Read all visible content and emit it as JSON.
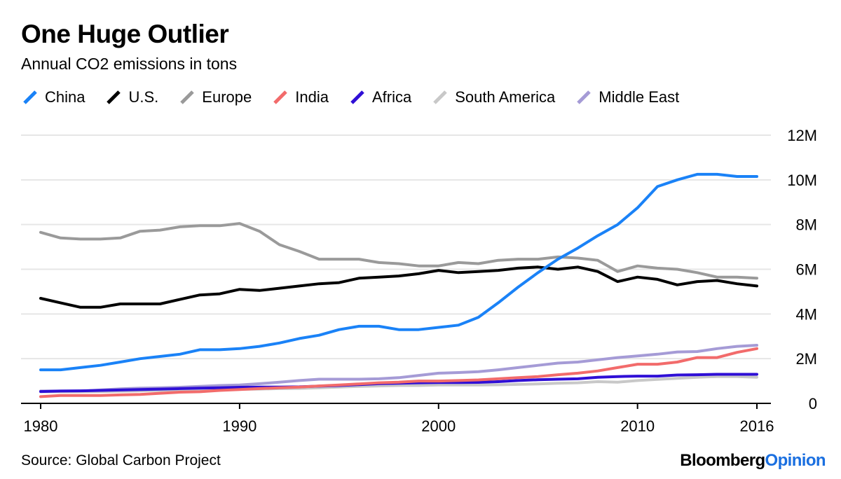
{
  "header": {
    "title": "One Huge Outlier",
    "subtitle": "Annual CO2 emissions in tons"
  },
  "footer": {
    "source": "Source: Global Carbon Project",
    "brand_primary": "Bloomberg",
    "brand_secondary": "Opinion"
  },
  "chart_data": {
    "type": "line",
    "title": "One Huge Outlier",
    "subtitle": "Annual CO2 emissions in tons",
    "xlabel": "",
    "ylabel": "",
    "xlim": [
      1980,
      2016
    ],
    "ylim": [
      0,
      12000000
    ],
    "x_ticks": [
      1980,
      1990,
      2000,
      2010,
      2016
    ],
    "y_ticks": [
      0,
      2000000,
      4000000,
      6000000,
      8000000,
      10000000,
      12000000
    ],
    "y_tick_labels": [
      "0",
      "2M",
      "4M",
      "6M",
      "8M",
      "10M",
      "12M"
    ],
    "y_axis_side": "right",
    "grid": "horizontal",
    "legend_position": "top",
    "x": [
      1980,
      1981,
      1982,
      1983,
      1984,
      1985,
      1986,
      1987,
      1988,
      1989,
      1990,
      1991,
      1992,
      1993,
      1994,
      1995,
      1996,
      1997,
      1998,
      1999,
      2000,
      2001,
      2002,
      2003,
      2004,
      2005,
      2006,
      2007,
      2008,
      2009,
      2010,
      2011,
      2012,
      2013,
      2014,
      2015,
      2016
    ],
    "series": [
      {
        "name": "China",
        "color": "#1a82f7",
        "values": [
          1.5,
          1.5,
          1.6,
          1.7,
          1.85,
          2.0,
          2.1,
          2.2,
          2.4,
          2.4,
          2.45,
          2.55,
          2.7,
          2.9,
          3.05,
          3.3,
          3.45,
          3.45,
          3.3,
          3.3,
          3.4,
          3.5,
          3.85,
          4.5,
          5.2,
          5.85,
          6.45,
          6.95,
          7.5,
          8.0,
          8.75,
          9.7,
          10.0,
          10.25,
          10.25,
          10.15,
          10.15
        ]
      },
      {
        "name": "U.S.",
        "color": "#000000",
        "values": [
          4.7,
          4.5,
          4.3,
          4.3,
          4.45,
          4.45,
          4.45,
          4.65,
          4.85,
          4.9,
          5.1,
          5.05,
          5.15,
          5.25,
          5.35,
          5.4,
          5.6,
          5.65,
          5.7,
          5.8,
          5.95,
          5.85,
          5.9,
          5.95,
          6.05,
          6.1,
          6.0,
          6.1,
          5.9,
          5.45,
          5.65,
          5.55,
          5.3,
          5.45,
          5.5,
          5.35,
          5.25
        ]
      },
      {
        "name": "Europe",
        "color": "#9a9a9a",
        "values": [
          7.65,
          7.4,
          7.35,
          7.35,
          7.4,
          7.7,
          7.75,
          7.9,
          7.95,
          7.95,
          8.05,
          7.7,
          7.1,
          6.8,
          6.45,
          6.45,
          6.45,
          6.3,
          6.25,
          6.15,
          6.15,
          6.3,
          6.25,
          6.4,
          6.45,
          6.45,
          6.55,
          6.5,
          6.4,
          5.9,
          6.15,
          6.05,
          6.0,
          5.85,
          5.65,
          5.65,
          5.6
        ]
      },
      {
        "name": "India",
        "color": "#f26b6b",
        "values": [
          0.3,
          0.35,
          0.35,
          0.35,
          0.38,
          0.4,
          0.45,
          0.5,
          0.52,
          0.58,
          0.62,
          0.66,
          0.7,
          0.73,
          0.78,
          0.82,
          0.87,
          0.92,
          0.95,
          1.0,
          1.0,
          1.02,
          1.05,
          1.1,
          1.15,
          1.2,
          1.28,
          1.35,
          1.45,
          1.6,
          1.75,
          1.75,
          1.85,
          2.05,
          2.05,
          2.28,
          2.45
        ]
      },
      {
        "name": "Africa",
        "color": "#2f0fd6",
        "values": [
          0.53,
          0.55,
          0.56,
          0.58,
          0.6,
          0.62,
          0.64,
          0.66,
          0.68,
          0.7,
          0.72,
          0.73,
          0.73,
          0.74,
          0.77,
          0.8,
          0.84,
          0.88,
          0.9,
          0.92,
          0.93,
          0.93,
          0.94,
          0.97,
          1.02,
          1.06,
          1.08,
          1.1,
          1.17,
          1.2,
          1.22,
          1.22,
          1.27,
          1.28,
          1.3,
          1.3,
          1.3
        ]
      },
      {
        "name": "South America",
        "color": "#c8c8c8",
        "values": [
          0.52,
          0.52,
          0.52,
          0.53,
          0.54,
          0.56,
          0.58,
          0.6,
          0.62,
          0.63,
          0.63,
          0.64,
          0.66,
          0.67,
          0.7,
          0.73,
          0.76,
          0.78,
          0.8,
          0.8,
          0.82,
          0.82,
          0.82,
          0.83,
          0.85,
          0.87,
          0.9,
          0.92,
          0.97,
          0.95,
          1.02,
          1.07,
          1.12,
          1.17,
          1.2,
          1.2,
          1.17
        ]
      },
      {
        "name": "Middle East",
        "color": "#a59bd6",
        "values": [
          0.55,
          0.55,
          0.55,
          0.6,
          0.65,
          0.68,
          0.7,
          0.72,
          0.76,
          0.8,
          0.82,
          0.88,
          0.95,
          1.02,
          1.08,
          1.08,
          1.08,
          1.1,
          1.15,
          1.25,
          1.35,
          1.38,
          1.42,
          1.5,
          1.6,
          1.7,
          1.8,
          1.85,
          1.95,
          2.05,
          2.12,
          2.2,
          2.3,
          2.32,
          2.45,
          2.55,
          2.6
        ]
      }
    ],
    "values_unit": "million tons"
  }
}
